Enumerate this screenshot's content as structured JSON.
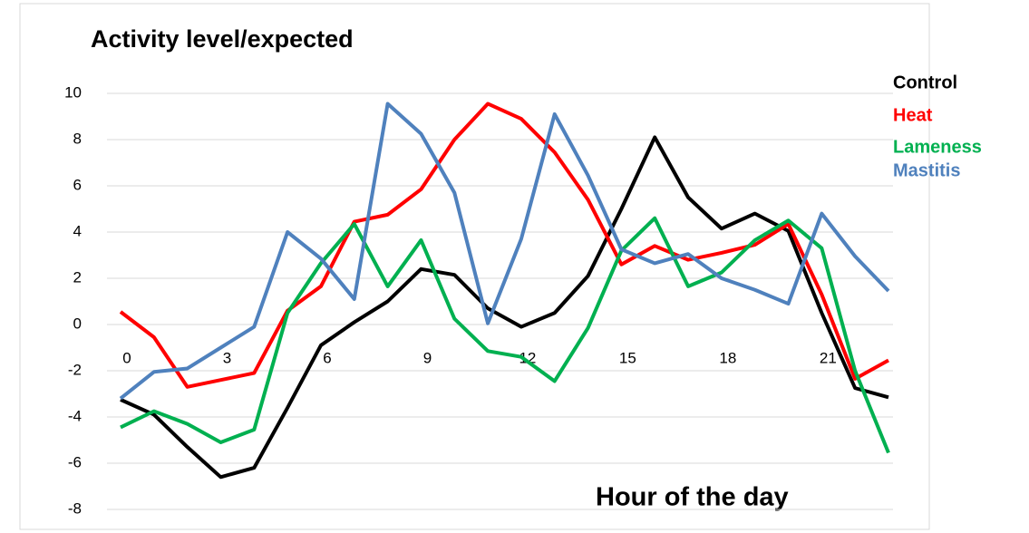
{
  "chart_data": {
    "type": "line",
    "title": "Activity level/expected",
    "x_label": "Hour of the day",
    "x": [
      0,
      1,
      2,
      3,
      4,
      5,
      6,
      7,
      8,
      9,
      10,
      11,
      12,
      13,
      14,
      15,
      16,
      17,
      18,
      19,
      20,
      21,
      22,
      23
    ],
    "xlim": [
      0,
      23
    ],
    "xticks": [
      0,
      3,
      6,
      9,
      12,
      15,
      18,
      21
    ],
    "ylim": [
      -8,
      10
    ],
    "yticks": [
      -8,
      -6,
      -4,
      -2,
      0,
      2,
      4,
      6,
      8,
      10
    ],
    "grid": true,
    "series": [
      {
        "name": "Control",
        "color": "#000000",
        "values": [
          -3.25,
          -3.9,
          -5.3,
          -6.6,
          -6.2,
          -3.6,
          -0.9,
          0.1,
          1.0,
          2.4,
          2.15,
          0.7,
          -0.1,
          0.5,
          2.1,
          5.0,
          8.1,
          5.5,
          4.15,
          4.8,
          4.05,
          0.5,
          -2.75,
          -3.15
        ]
      },
      {
        "name": "Heat",
        "color": "#ff0000",
        "values": [
          0.55,
          -0.55,
          -2.7,
          -2.4,
          -2.1,
          0.6,
          1.65,
          4.45,
          4.75,
          5.85,
          8.0,
          9.55,
          8.9,
          7.45,
          5.4,
          2.6,
          3.4,
          2.8,
          3.1,
          3.45,
          4.35,
          1.3,
          -2.35,
          -1.55
        ]
      },
      {
        "name": "Lameness",
        "color": "#00b050",
        "values": [
          -4.45,
          -3.75,
          -4.3,
          -5.1,
          -4.55,
          0.5,
          2.65,
          4.35,
          1.65,
          3.65,
          0.25,
          -1.15,
          -1.4,
          -2.45,
          -0.15,
          3.2,
          4.6,
          1.65,
          2.25,
          3.65,
          4.5,
          3.3,
          -2.0,
          -5.55
        ]
      },
      {
        "name": "Mastitis",
        "color": "#4f81bd",
        "values": [
          -3.2,
          -2.05,
          -1.9,
          -1.0,
          -0.1,
          4.0,
          2.85,
          1.1,
          9.55,
          8.25,
          5.7,
          0.05,
          3.7,
          9.1,
          6.45,
          3.25,
          2.65,
          3.05,
          2.0,
          1.5,
          0.9,
          4.8,
          2.95,
          1.45
        ]
      }
    ]
  }
}
